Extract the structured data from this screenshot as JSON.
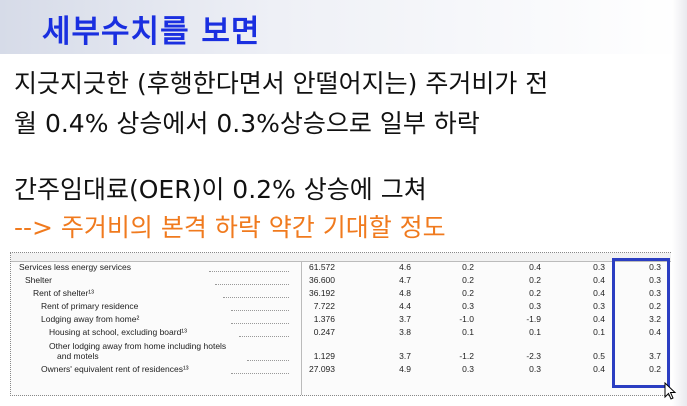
{
  "title": "세부수치를 보면",
  "lines": {
    "l1": "지긋지긋한 (후행한다면서 안떨어지는) 주거비가 전",
    "l2": "월 0.4% 상승에서 0.3%상승으로 일부 하락",
    "l3": "간주임대료(OER)이 0.2% 상승에 그쳐",
    "l4": "--> 주거비의 본격 하락 약간 기대할 정도"
  },
  "colors": {
    "title": "#1a2fe0",
    "highlight_line": "#f07a1e",
    "highlight_box": "#2b3ec2"
  },
  "table": {
    "rows": [
      {
        "label": "Services less energy services",
        "values": [
          "61.572",
          "4.6",
          "0.2",
          "0.4",
          "0.3",
          "0.3"
        ]
      },
      {
        "label": "Shelter",
        "values": [
          "36.600",
          "4.7",
          "0.2",
          "0.2",
          "0.4",
          "0.3"
        ]
      },
      {
        "label": "Rent of shelter¹³",
        "values": [
          "36.192",
          "4.8",
          "0.2",
          "0.2",
          "0.4",
          "0.3"
        ]
      },
      {
        "label": "Rent of primary residence",
        "values": [
          "7.722",
          "4.4",
          "0.3",
          "0.3",
          "0.3",
          "0.2"
        ]
      },
      {
        "label": "Lodging away from home²",
        "values": [
          "1.376",
          "3.7",
          "-1.0",
          "-1.9",
          "0.4",
          "3.2"
        ]
      },
      {
        "label": "Housing at school, excluding board¹³",
        "values": [
          "0.247",
          "3.8",
          "0.1",
          "0.1",
          "0.1",
          "0.4"
        ]
      },
      {
        "label": "Other lodging away from home including hotels",
        "values": [
          "",
          "",
          "",
          "",
          "",
          ""
        ]
      },
      {
        "label": "and motels",
        "values": [
          "1.129",
          "3.7",
          "-1.2",
          "-2.3",
          "0.5",
          "3.7"
        ]
      },
      {
        "label": "Owners' equivalent rent of residences¹³",
        "values": [
          "27.093",
          "4.9",
          "0.3",
          "0.3",
          "0.4",
          "0.2"
        ]
      }
    ]
  }
}
